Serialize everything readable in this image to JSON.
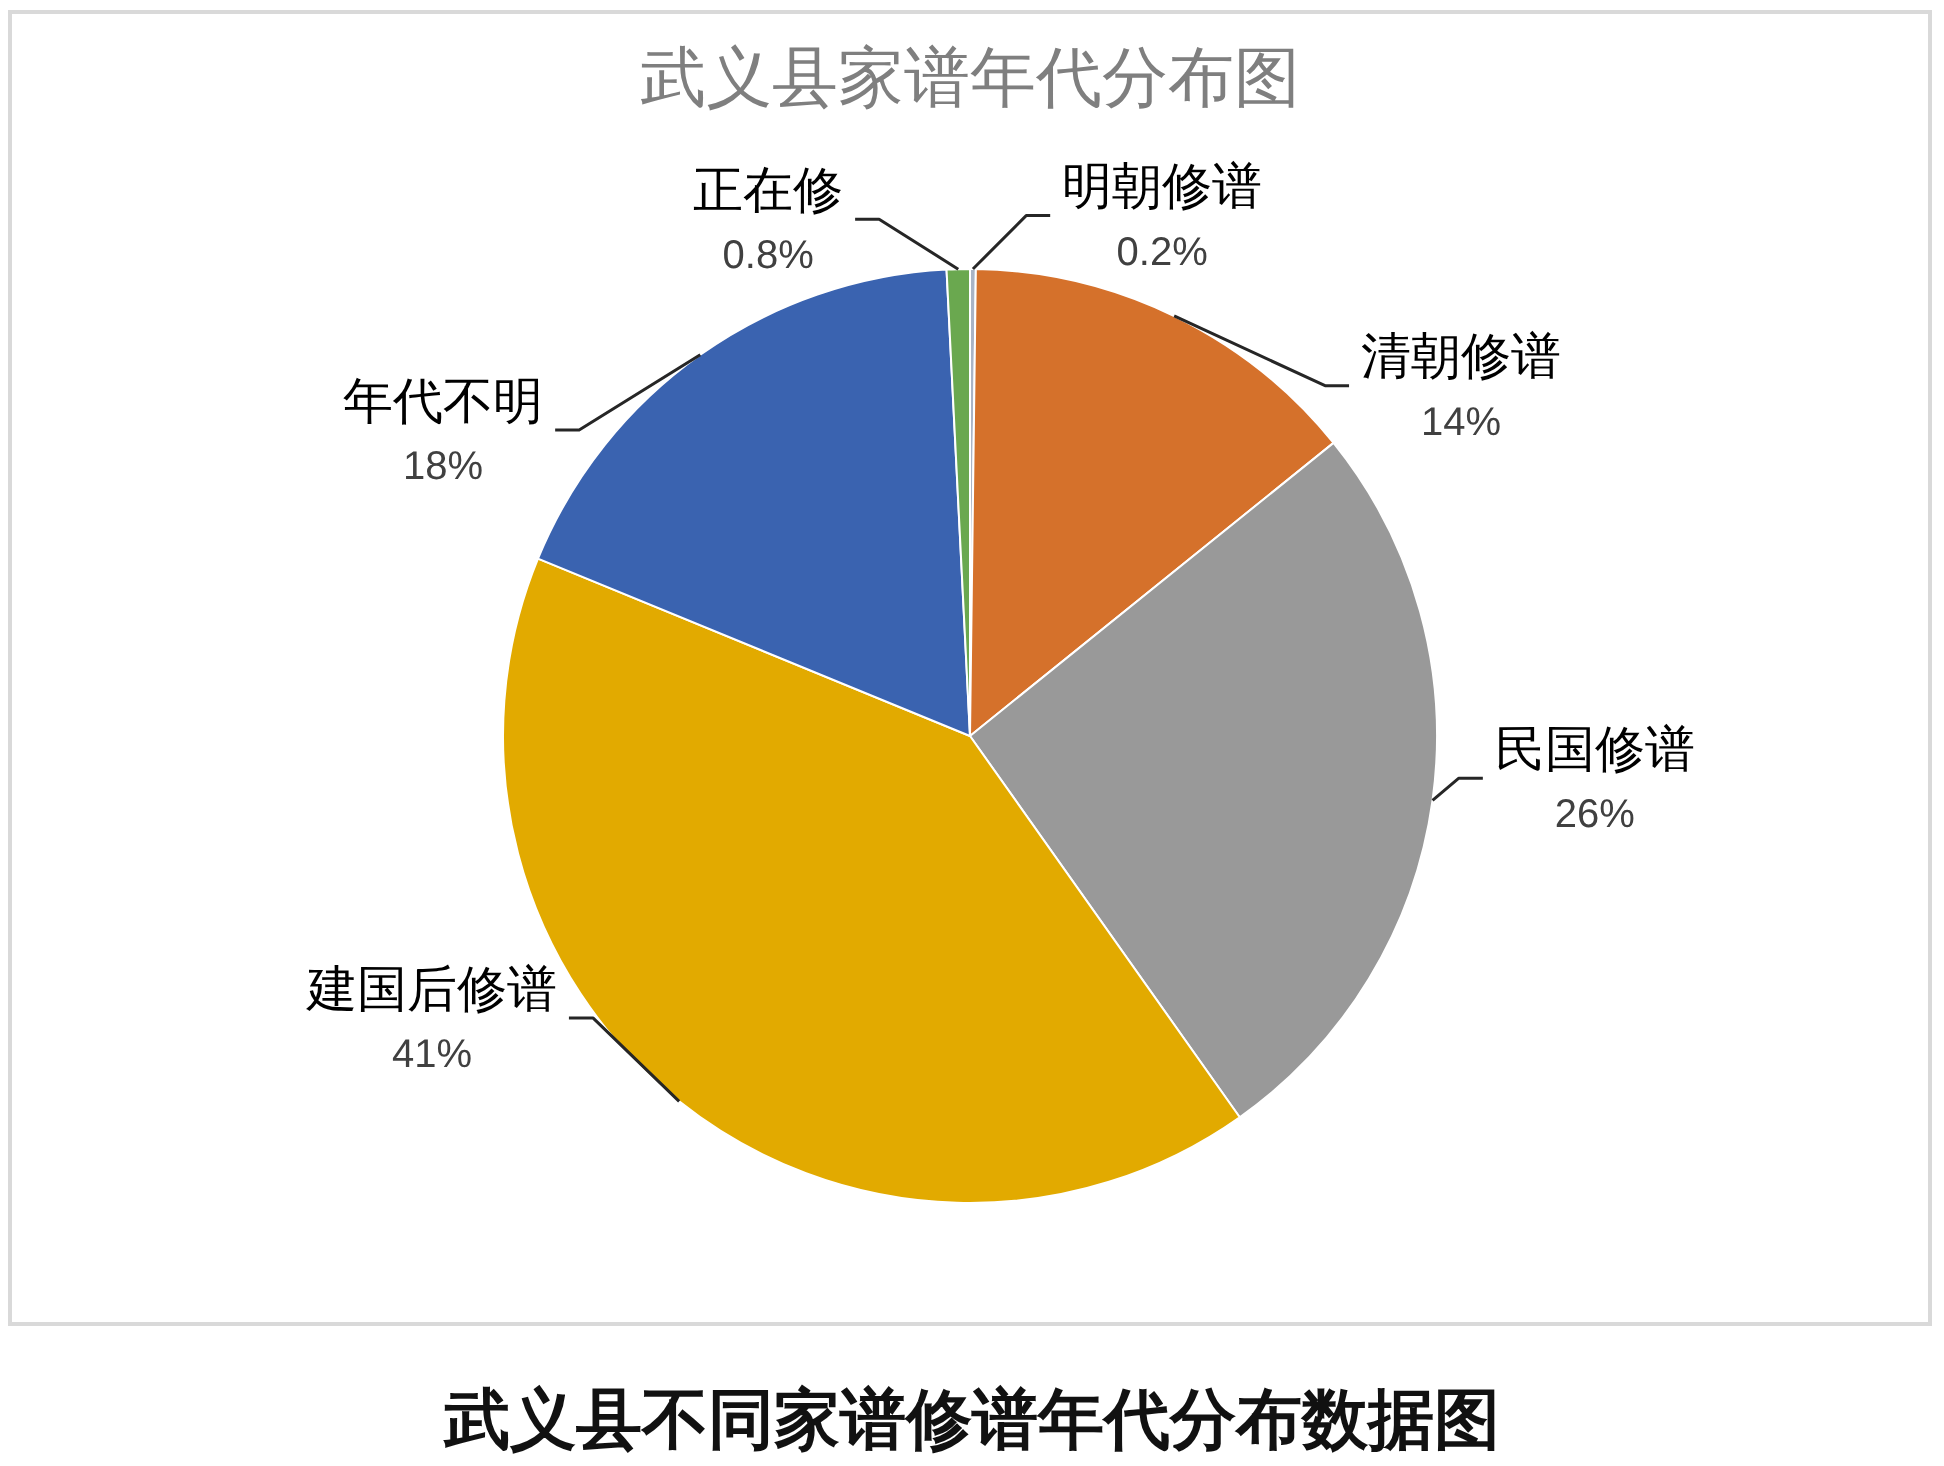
{
  "chart_data": {
    "type": "pie",
    "title": "武义县家谱年代分布图",
    "categories": [
      "明朝修谱",
      "清朝修谱",
      "民国修谱",
      "建国后修谱",
      "年代不明",
      "正在修"
    ],
    "values": [
      0.2,
      14,
      26,
      41,
      18,
      0.8
    ],
    "colors": [
      "#a9b4c6",
      "#d5712b",
      "#999999",
      "#e2aa00",
      "#3a63b0",
      "#6aa84f"
    ],
    "value_labels": [
      "0.2%",
      "14%",
      "26%",
      "41%",
      "18%",
      "0.8%"
    ],
    "annotations": [
      "武义县不同家谱修谱年代分布数据图"
    ]
  }
}
